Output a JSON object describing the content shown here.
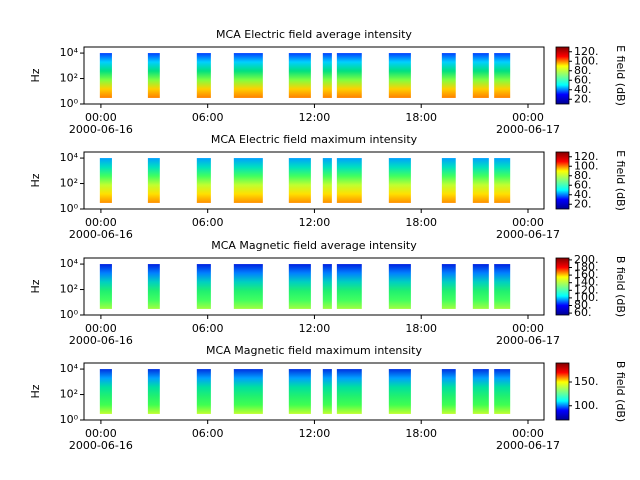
{
  "chart_data": [
    {
      "type": "spectrogram",
      "title": "MCA  Electric field average intensity",
      "ylabel": "Hz",
      "xlim": [
        -0.95,
        24.9
      ],
      "ylim": [
        1,
        30000
      ],
      "log_y": true,
      "xticks": [
        {
          "value": 0,
          "label": "00:00"
        },
        {
          "value": 6,
          "label": "06:00"
        },
        {
          "value": 12,
          "label": "12:00"
        },
        {
          "value": 18,
          "label": "18:00"
        },
        {
          "value": 24,
          "label": "00:00"
        }
      ],
      "xdates": [
        {
          "value": 0,
          "label": "2000-06-16"
        },
        {
          "value": 24,
          "label": "2000-06-17"
        }
      ],
      "yticks": [
        {
          "value": 1,
          "label": "10⁰"
        },
        {
          "value": 100,
          "label": "10²"
        },
        {
          "value": 10000,
          "label": "10⁴"
        }
      ],
      "segments": [
        [
          -0.06,
          0.62
        ],
        [
          2.64,
          3.31
        ],
        [
          5.39,
          6.18
        ],
        [
          7.47,
          9.1
        ],
        [
          10.56,
          11.8
        ],
        [
          12.47,
          12.98
        ],
        [
          13.26,
          14.66
        ],
        [
          16.18,
          17.42
        ],
        [
          19.16,
          19.94
        ],
        [
          20.9,
          21.8
        ],
        [
          22.1,
          23.0
        ]
      ],
      "band": [
        3,
        10000
      ],
      "fill_gradient": [
        "#ff8000",
        "#ffd000",
        "#80ff40",
        "#00e080",
        "#00d0ff",
        "#0040ff"
      ],
      "colorbar": {
        "label": "E field (dB)",
        "clim": [
          10,
          130
        ],
        "ticks": [
          {
            "value": 20,
            "label": "20."
          },
          {
            "value": 40,
            "label": "40."
          },
          {
            "value": 60,
            "label": "60."
          },
          {
            "value": 80,
            "label": "80."
          },
          {
            "value": 100,
            "label": "100."
          },
          {
            "value": 120,
            "label": "120."
          }
        ]
      }
    },
    {
      "type": "spectrogram",
      "title": "MCA  Electric field maximum intensity",
      "ylabel": "Hz",
      "xlim": [
        -0.95,
        24.9
      ],
      "ylim": [
        1,
        30000
      ],
      "log_y": true,
      "xticks": [
        {
          "value": 0,
          "label": "00:00"
        },
        {
          "value": 6,
          "label": "06:00"
        },
        {
          "value": 12,
          "label": "12:00"
        },
        {
          "value": 18,
          "label": "18:00"
        },
        {
          "value": 24,
          "label": "00:00"
        }
      ],
      "xdates": [
        {
          "value": 0,
          "label": "2000-06-16"
        },
        {
          "value": 24,
          "label": "2000-06-17"
        }
      ],
      "yticks": [
        {
          "value": 1,
          "label": "10⁰"
        },
        {
          "value": 100,
          "label": "10²"
        },
        {
          "value": 10000,
          "label": "10⁴"
        }
      ],
      "segments": [
        [
          -0.06,
          0.62
        ],
        [
          2.64,
          3.31
        ],
        [
          5.39,
          6.18
        ],
        [
          7.47,
          9.1
        ],
        [
          10.56,
          11.8
        ],
        [
          12.47,
          12.98
        ],
        [
          13.26,
          14.66
        ],
        [
          16.18,
          17.42
        ],
        [
          19.16,
          19.94
        ],
        [
          20.9,
          21.8
        ],
        [
          22.1,
          23.0
        ]
      ],
      "band": [
        3,
        10000
      ],
      "fill_gradient": [
        "#ff9000",
        "#ffe000",
        "#c0ff30",
        "#40ff60",
        "#00e0c0",
        "#00a0ff"
      ],
      "colorbar": {
        "label": "E field (dB)",
        "clim": [
          10,
          130
        ],
        "ticks": [
          {
            "value": 20,
            "label": "20."
          },
          {
            "value": 40,
            "label": "40."
          },
          {
            "value": 60,
            "label": "60."
          },
          {
            "value": 80,
            "label": "80."
          },
          {
            "value": 100,
            "label": "100."
          },
          {
            "value": 120,
            "label": "120."
          }
        ]
      }
    },
    {
      "type": "spectrogram",
      "title": "MCA  Magnetic field average intensity",
      "ylabel": "Hz",
      "xlim": [
        -0.95,
        24.9
      ],
      "ylim": [
        1,
        30000
      ],
      "log_y": true,
      "xticks": [
        {
          "value": 0,
          "label": "00:00"
        },
        {
          "value": 6,
          "label": "06:00"
        },
        {
          "value": 12,
          "label": "12:00"
        },
        {
          "value": 18,
          "label": "18:00"
        },
        {
          "value": 24,
          "label": "00:00"
        }
      ],
      "xdates": [
        {
          "value": 0,
          "label": "2000-06-16"
        },
        {
          "value": 24,
          "label": "2000-06-17"
        }
      ],
      "yticks": [
        {
          "value": 1,
          "label": "10⁰"
        },
        {
          "value": 100,
          "label": "10²"
        },
        {
          "value": 10000,
          "label": "10⁴"
        }
      ],
      "segments": [
        [
          -0.06,
          0.62
        ],
        [
          2.64,
          3.31
        ],
        [
          5.39,
          6.18
        ],
        [
          7.47,
          9.1
        ],
        [
          10.56,
          11.8
        ],
        [
          12.47,
          12.98
        ],
        [
          13.26,
          14.66
        ],
        [
          16.18,
          17.42
        ],
        [
          19.16,
          19.94
        ],
        [
          20.9,
          21.8
        ],
        [
          22.1,
          23.0
        ]
      ],
      "band": [
        3,
        10000
      ],
      "fill_gradient": [
        "#a0ff40",
        "#40ff60",
        "#20f070",
        "#00d0c0",
        "#0080ff",
        "#0020e0"
      ],
      "colorbar": {
        "label": "B field (dB)",
        "clim": [
          55,
          205
        ],
        "ticks": [
          {
            "value": 60,
            "label": "60."
          },
          {
            "value": 80,
            "label": "80."
          },
          {
            "value": 100,
            "label": "100."
          },
          {
            "value": 120,
            "label": "120."
          },
          {
            "value": 140,
            "label": "140."
          },
          {
            "value": 160,
            "label": "160."
          },
          {
            "value": 180,
            "label": "180."
          },
          {
            "value": 200,
            "label": "200."
          }
        ]
      }
    },
    {
      "type": "spectrogram",
      "title": "MCA  Magnetic field maximum intensity",
      "ylabel": "Hz",
      "xlim": [
        -0.95,
        24.9
      ],
      "ylim": [
        1,
        30000
      ],
      "log_y": true,
      "xticks": [
        {
          "value": 0,
          "label": "00:00"
        },
        {
          "value": 6,
          "label": "06:00"
        },
        {
          "value": 12,
          "label": "12:00"
        },
        {
          "value": 18,
          "label": "18:00"
        },
        {
          "value": 24,
          "label": "00:00"
        }
      ],
      "xdates": [
        {
          "value": 0,
          "label": "2000-06-16"
        },
        {
          "value": 24,
          "label": "2000-06-17"
        }
      ],
      "yticks": [
        {
          "value": 1,
          "label": "10⁰"
        },
        {
          "value": 100,
          "label": "10²"
        },
        {
          "value": 10000,
          "label": "10⁴"
        }
      ],
      "segments": [
        [
          -0.06,
          0.62
        ],
        [
          2.64,
          3.31
        ],
        [
          5.39,
          6.18
        ],
        [
          7.47,
          9.1
        ],
        [
          10.56,
          11.8
        ],
        [
          12.47,
          12.98
        ],
        [
          13.26,
          14.66
        ],
        [
          16.18,
          17.42
        ],
        [
          19.16,
          19.94
        ],
        [
          20.9,
          21.8
        ],
        [
          22.1,
          23.0
        ]
      ],
      "band": [
        3,
        10000
      ],
      "fill_gradient": [
        "#c0ff30",
        "#40ff50",
        "#20f070",
        "#00e0a0",
        "#00a0ff",
        "#0030e0"
      ],
      "colorbar": {
        "label": "B field (dB)",
        "clim": [
          70,
          190
        ],
        "ticks": [
          {
            "value": 100,
            "label": "100."
          },
          {
            "value": 150,
            "label": "150."
          }
        ]
      }
    }
  ]
}
